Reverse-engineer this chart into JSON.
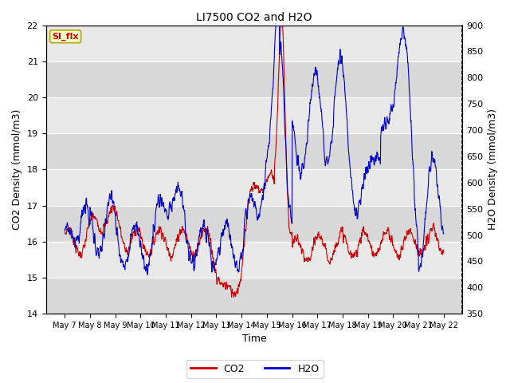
{
  "title": "LI7500 CO2 and H2O",
  "xlabel": "Time",
  "ylabel_left": "CO2 Density (mmol/m3)",
  "ylabel_right": "H2O Density (mmol/m3)",
  "ylim_left": [
    14.0,
    22.0
  ],
  "ylim_right": [
    350,
    900
  ],
  "yticks_left": [
    14.0,
    15.0,
    16.0,
    17.0,
    18.0,
    19.0,
    20.0,
    21.0,
    22.0
  ],
  "yticks_right": [
    350,
    400,
    450,
    500,
    550,
    600,
    650,
    700,
    750,
    800,
    850,
    900
  ],
  "xtick_labels": [
    "May 7",
    "May 8",
    "May 9",
    "May 10",
    "May 11",
    "May 12",
    "May 13",
    "May 14",
    "May 15",
    "May 16",
    "May 17",
    "May 18",
    "May 19",
    "May 20",
    "May 21",
    "May 22"
  ],
  "color_co2": "#cc0000",
  "color_h2o": "#0000cc",
  "plot_bg": "#e8e8e8",
  "annotation_text": "SI_flx",
  "annotation_color": "#cc0000",
  "annotation_bg": "#ffffcc",
  "legend_co2": "CO2",
  "legend_h2o": "H2O",
  "figsize": [
    6.4,
    4.8
  ],
  "dpi": 100
}
